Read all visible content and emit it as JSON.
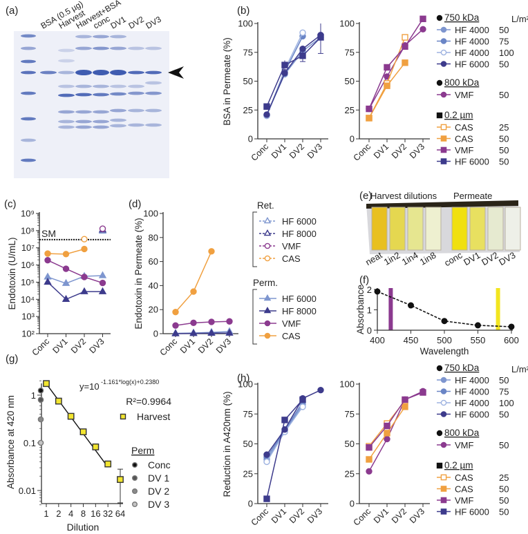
{
  "panel_labels": {
    "a": "(a)",
    "b": "(b)",
    "c": "(c)",
    "d": "(d)",
    "e": "(e)",
    "f": "(f)",
    "g": "(g)",
    "h": "(h)"
  },
  "gel": {
    "lane_labels": [
      "BSA (0.5 µg)",
      "Harvest",
      "Harvest+BSA",
      "conc",
      "DV1",
      "DV2",
      "DV3"
    ],
    "arrow": "arrowhead-icon"
  },
  "photo": {
    "group_labels": [
      "Harvest dilutions",
      "Permeate"
    ],
    "cuvette_labels": [
      "neat",
      "1in2",
      "1in4",
      "1in8",
      "conc",
      "DV1",
      "DV2",
      "DV3"
    ]
  },
  "legends": {
    "bh": {
      "unit": "L/m²",
      "groups": [
        {
          "title": "750 kDa",
          "title_marker": "circle",
          "items": [
            {
              "label": "HF 4000",
              "value": "50",
              "color": "#7e96cf",
              "marker": "circle",
              "fill": true
            },
            {
              "label": "HF 4000",
              "value": "75",
              "color": "#6a85c6",
              "marker": "circle",
              "fill": true
            },
            {
              "label": "HF 4000",
              "value": "100",
              "color": "#9db2e0",
              "marker": "circle",
              "fill": false
            },
            {
              "label": "HF 6000",
              "value": "50",
              "color": "#3d3b8c",
              "marker": "circle",
              "fill": true
            }
          ]
        },
        {
          "title": "800 kDa",
          "title_marker": "circle",
          "items": [
            {
              "label": "VMF",
              "value": "50",
              "color": "#8b3a8f",
              "marker": "circle",
              "fill": true
            }
          ]
        },
        {
          "title": "0.2 µm",
          "title_marker": "square",
          "items": [
            {
              "label": "CAS",
              "value": "25",
              "color": "#f0a040",
              "marker": "square",
              "fill": false
            },
            {
              "label": "CAS",
              "value": "50",
              "color": "#f0a040",
              "marker": "square",
              "fill": true
            },
            {
              "label": "VMF",
              "value": "50",
              "color": "#8b3a8f",
              "marker": "square",
              "fill": true
            },
            {
              "label": "HF 6000",
              "value": "50",
              "color": "#3d3b8c",
              "marker": "square",
              "fill": true
            }
          ]
        }
      ]
    },
    "cd": {
      "groups": [
        {
          "title": "Ret.",
          "items": [
            {
              "label": "HF 6000",
              "color": "#7e96cf",
              "marker": "triangle",
              "fill": false,
              "dashed": true
            },
            {
              "label": "HF 8000",
              "color": "#3d3b8c",
              "marker": "triangle",
              "fill": false,
              "dashed": true
            },
            {
              "label": "VMF",
              "color": "#8b3a8f",
              "marker": "circle",
              "fill": false,
              "dashed": true
            },
            {
              "label": "CAS",
              "color": "#f0a040",
              "marker": "circle",
              "fill": false,
              "dashed": true
            }
          ]
        },
        {
          "title": "Perm.",
          "items": [
            {
              "label": "HF 6000",
              "color": "#7e96cf",
              "marker": "triangle",
              "fill": true
            },
            {
              "label": "HF 8000",
              "color": "#3d3b8c",
              "marker": "triangle",
              "fill": true
            },
            {
              "label": "VMF",
              "color": "#8b3a8f",
              "marker": "circle",
              "fill": true
            },
            {
              "label": "CAS",
              "color": "#f0a040",
              "marker": "circle",
              "fill": true
            }
          ]
        }
      ]
    }
  },
  "chart_data": [
    {
      "id": "b-left",
      "type": "line",
      "ylabel": "BSA in Permeate (%)",
      "xlabel": "",
      "categories": [
        "Conc",
        "DV1",
        "DV2",
        "DV3"
      ],
      "ylim": [
        0,
        100
      ],
      "yticks": [
        0,
        25,
        50,
        75,
        100
      ],
      "ytick_labels": [
        "0",
        "25",
        "50",
        "75",
        "100"
      ],
      "series": [
        {
          "color": "#7e96cf",
          "marker": "circle",
          "fill": true,
          "values": [
            21,
            56,
            76,
            88
          ]
        },
        {
          "color": "#6a85c6",
          "marker": "circle",
          "fill": true,
          "values": [
            20,
            58,
            89,
            null
          ]
        },
        {
          "color": "#9db2e0",
          "marker": "circle",
          "fill": false,
          "values": [
            20,
            60,
            92,
            null
          ]
        },
        {
          "color": "#3d3b8c",
          "marker": "circle",
          "fill": true,
          "values": [
            21,
            57,
            78,
            90
          ]
        },
        {
          "color": "#3d3b8c",
          "marker": "square",
          "fill": true,
          "values": [
            28,
            64,
            72,
            88
          ],
          "err": [
            null,
            4,
            5,
            14
          ]
        }
      ]
    },
    {
      "id": "b-right",
      "type": "line",
      "ylabel": "",
      "xlabel": "",
      "categories": [
        "Conc",
        "DV1",
        "DV2",
        "DV3"
      ],
      "ylim": [
        0,
        100
      ],
      "yticks": [
        0,
        25,
        50,
        75,
        100
      ],
      "ytick_labels": [
        "0",
        "25",
        "50",
        "75",
        "100"
      ],
      "series": [
        {
          "color": "#8b3a8f",
          "marker": "circle",
          "fill": true,
          "values": [
            26,
            54,
            81,
            95
          ]
        },
        {
          "color": "#f0a040",
          "marker": "square",
          "fill": false,
          "values": [
            18,
            48,
            88,
            null
          ]
        },
        {
          "color": "#f0a040",
          "marker": "square",
          "fill": true,
          "values": [
            18,
            46,
            66,
            null
          ]
        },
        {
          "color": "#8b3a8f",
          "marker": "square",
          "fill": true,
          "values": [
            26,
            62,
            80,
            104
          ]
        }
      ]
    },
    {
      "id": "c",
      "type": "line",
      "scale": "log",
      "ylabel": "Endotoxin (U/mL)",
      "categories": [
        "Conc",
        "DV1",
        "DV2",
        "DV3"
      ],
      "ylim": [
        100,
        1000000000
      ],
      "yticks": [
        100,
        1000,
        10000,
        100000,
        1000000,
        10000000,
        100000000,
        1000000000
      ],
      "ytick_labels": [
        "10²",
        "10³",
        "10⁴",
        "10⁵",
        "10⁶",
        "10⁷",
        "10⁸",
        "10⁹"
      ],
      "reference_line": {
        "label": "SM",
        "value": 30000000
      },
      "series": [
        {
          "color": "#7e96cf",
          "marker": "triangle",
          "fill": false,
          "values": [
            null,
            null,
            null,
            95000000
          ]
        },
        {
          "color": "#3d3b8c",
          "marker": "triangle",
          "fill": false,
          "values": [
            null,
            null,
            null,
            110000000
          ]
        },
        {
          "color": "#8b3a8f",
          "marker": "circle",
          "fill": false,
          "values": [
            null,
            null,
            null,
            130000000
          ]
        },
        {
          "color": "#f0a040",
          "marker": "circle",
          "fill": false,
          "values": [
            null,
            null,
            32000000,
            null
          ]
        },
        {
          "color": "#7e96cf",
          "marker": "triangle",
          "fill": true,
          "values": [
            200000,
            85000,
            220000,
            240000
          ]
        },
        {
          "color": "#3d3b8c",
          "marker": "triangle",
          "fill": true,
          "values": [
            100000,
            10000,
            28000,
            28000
          ]
        },
        {
          "color": "#8b3a8f",
          "marker": "circle",
          "fill": true,
          "values": [
            1900000,
            600000,
            200000,
            90000
          ]
        },
        {
          "color": "#f0a040",
          "marker": "circle",
          "fill": true,
          "values": [
            4600000,
            4300000,
            8500000,
            null
          ]
        }
      ]
    },
    {
      "id": "d",
      "type": "line",
      "ylabel": "Endotoxin in  Permeate (%)",
      "categories": [
        "Conc",
        "DV1",
        "DV2",
        "DV3"
      ],
      "ylim": [
        0,
        100
      ],
      "yticks": [
        0,
        20,
        40,
        60,
        80,
        100
      ],
      "ytick_labels": [
        "0",
        "20",
        "40",
        "60",
        "80",
        "100"
      ],
      "series": [
        {
          "color": "#7e96cf",
          "marker": "triangle",
          "fill": true,
          "values": [
            0.3,
            0.6,
            1.1,
            1.8
          ]
        },
        {
          "color": "#3d3b8c",
          "marker": "triangle",
          "fill": true,
          "values": [
            0,
            0.2,
            0.4,
            0.5
          ]
        },
        {
          "color": "#8b3a8f",
          "marker": "circle",
          "fill": true,
          "values": [
            6.8,
            9,
            9.8,
            10.2
          ]
        },
        {
          "color": "#f0a040",
          "marker": "circle",
          "fill": true,
          "values": [
            18,
            35,
            68.5,
            null
          ]
        }
      ]
    },
    {
      "id": "f",
      "type": "line",
      "xlabel": "Wavelength",
      "ylabel": "Absorbance",
      "xlim": [
        400,
        600
      ],
      "ylim": [
        0,
        2
      ],
      "xticks": [
        400,
        450,
        500,
        550,
        600
      ],
      "xtick_labels": [
        "400",
        "450",
        "500",
        "550",
        "600"
      ],
      "yticks": [
        0,
        1,
        2
      ],
      "ytick_labels": [
        "0",
        "1",
        "2"
      ],
      "highlight_bands": [
        {
          "x": 420,
          "color": "#8b3a8f"
        },
        {
          "x": 580,
          "color": "#f2e520"
        }
      ],
      "series": [
        {
          "color": "#111111",
          "marker": "circle",
          "fill": true,
          "dashed": true,
          "x": [
            400,
            450,
            500,
            550,
            600
          ],
          "y": [
            1.9,
            1.22,
            0.45,
            0.24,
            0.17
          ]
        }
      ]
    },
    {
      "id": "g",
      "type": "scatter",
      "xlabel": "Dilution",
      "ylabel": "Absorbance at 420 nm",
      "xscale": "log",
      "yscale": "log",
      "xlim": [
        1,
        64
      ],
      "ylim": [
        0.005,
        2
      ],
      "xticks": [
        1,
        2,
        4,
        8,
        16,
        32,
        64
      ],
      "xtick_labels": [
        "1",
        "2",
        "4",
        "8",
        "16",
        "32",
        "64"
      ],
      "yticks": [
        0.01,
        0.1,
        1
      ],
      "ytick_labels": [
        "0.01",
        "0.1",
        "1"
      ],
      "equation": {
        "base": "y=10",
        "exponent": "-1.161*log(x)+0.2380",
        "r2": "R²=0.9964"
      },
      "fit": {
        "slope": -1.161,
        "intercept": 0.238,
        "range": [
          1,
          32
        ]
      },
      "series": [
        {
          "name": "Harvest",
          "color": "#f2e530",
          "marker": "square",
          "fill": true,
          "x": [
            1,
            2,
            4,
            8,
            16,
            32,
            64
          ],
          "y": [
            1.75,
            0.75,
            0.36,
            0.17,
            0.082,
            0.036,
            0.017
          ],
          "err_low": [
            null,
            null,
            null,
            null,
            null,
            0.032,
            0.0055
          ],
          "err_high": [
            null,
            null,
            null,
            null,
            null,
            0.04,
            0.028
          ]
        }
      ],
      "perm_legend_title": "Perm",
      "perm_series": [
        {
          "name": "Conc",
          "color": "#111111",
          "x": 1,
          "y": 1.25
        },
        {
          "name": "DV 1",
          "color": "#555555",
          "x": 1,
          "y": 0.8
        },
        {
          "name": "DV 2",
          "color": "#8a8a8a",
          "x": 1,
          "y": 0.31
        },
        {
          "name": "DV 3",
          "color": "#c4c4c4",
          "x": 1,
          "y": 0.1
        }
      ]
    },
    {
      "id": "h-left",
      "type": "line",
      "ylabel": "Reduction in A420nm (%)",
      "categories": [
        "Conc",
        "DV1",
        "DV2",
        "DV3"
      ],
      "ylim": [
        0,
        100
      ],
      "yticks": [
        0,
        25,
        50,
        75,
        100
      ],
      "ytick_labels": [
        "0",
        "25",
        "50",
        "75",
        "100"
      ],
      "series": [
        {
          "color": "#7e96cf",
          "marker": "circle",
          "fill": true,
          "values": [
            37,
            60,
            83,
            null
          ]
        },
        {
          "color": "#6a85c6",
          "marker": "circle",
          "fill": true,
          "values": [
            39,
            61,
            85,
            null
          ]
        },
        {
          "color": "#9db2e0",
          "marker": "circle",
          "fill": false,
          "values": [
            35,
            60,
            81,
            null
          ]
        },
        {
          "color": "#3d3b8c",
          "marker": "circle",
          "fill": true,
          "values": [
            41,
            62,
            88,
            95
          ]
        },
        {
          "color": "#3d3b8c",
          "marker": "square",
          "fill": true,
          "values": [
            4,
            70,
            87,
            null
          ]
        }
      ]
    },
    {
      "id": "h-right",
      "type": "line",
      "ylabel": "",
      "categories": [
        "Conc",
        "DV1",
        "DV2",
        "DV3"
      ],
      "ylim": [
        0,
        100
      ],
      "yticks": [
        0,
        25,
        50,
        75,
        100
      ],
      "ytick_labels": [
        "0",
        "25",
        "50",
        "75",
        "100"
      ],
      "series": [
        {
          "color": "#8b3a8f",
          "marker": "circle",
          "fill": true,
          "values": [
            27,
            54,
            87,
            94
          ]
        },
        {
          "color": "#f0a040",
          "marker": "square",
          "fill": false,
          "values": [
            48,
            67,
            86,
            null
          ]
        },
        {
          "color": "#f0a040",
          "marker": "square",
          "fill": true,
          "values": [
            37,
            59,
            81,
            null
          ]
        },
        {
          "color": "#8b3a8f",
          "marker": "square",
          "fill": true,
          "values": [
            47,
            65,
            87,
            93
          ]
        }
      ]
    }
  ]
}
